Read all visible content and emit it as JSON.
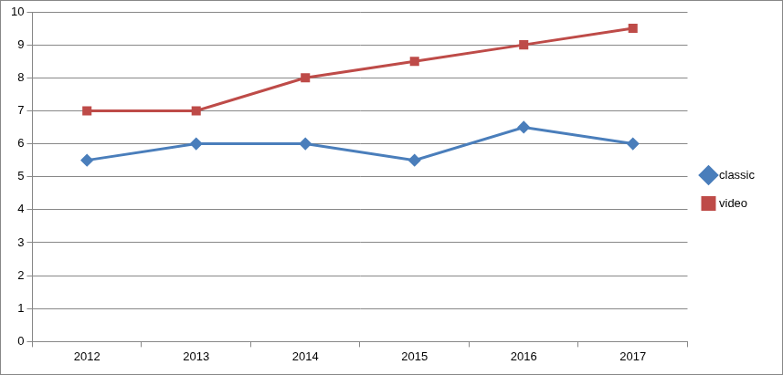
{
  "chart_data": {
    "type": "line",
    "categories": [
      "2012",
      "2013",
      "2014",
      "2015",
      "2016",
      "2017"
    ],
    "series": [
      {
        "name": "classic",
        "color": "#4a7ebb",
        "marker": "diamond",
        "values": [
          5.5,
          6,
          6,
          5.5,
          6.5,
          6
        ]
      },
      {
        "name": "video",
        "color": "#be4b48",
        "marker": "square",
        "values": [
          7,
          7,
          8,
          8.5,
          9,
          9.5
        ]
      }
    ],
    "ylim": [
      0,
      10
    ],
    "yticks": [
      0,
      1,
      2,
      3,
      4,
      5,
      6,
      7,
      8,
      9,
      10
    ],
    "grid": "y",
    "legend": "right"
  }
}
